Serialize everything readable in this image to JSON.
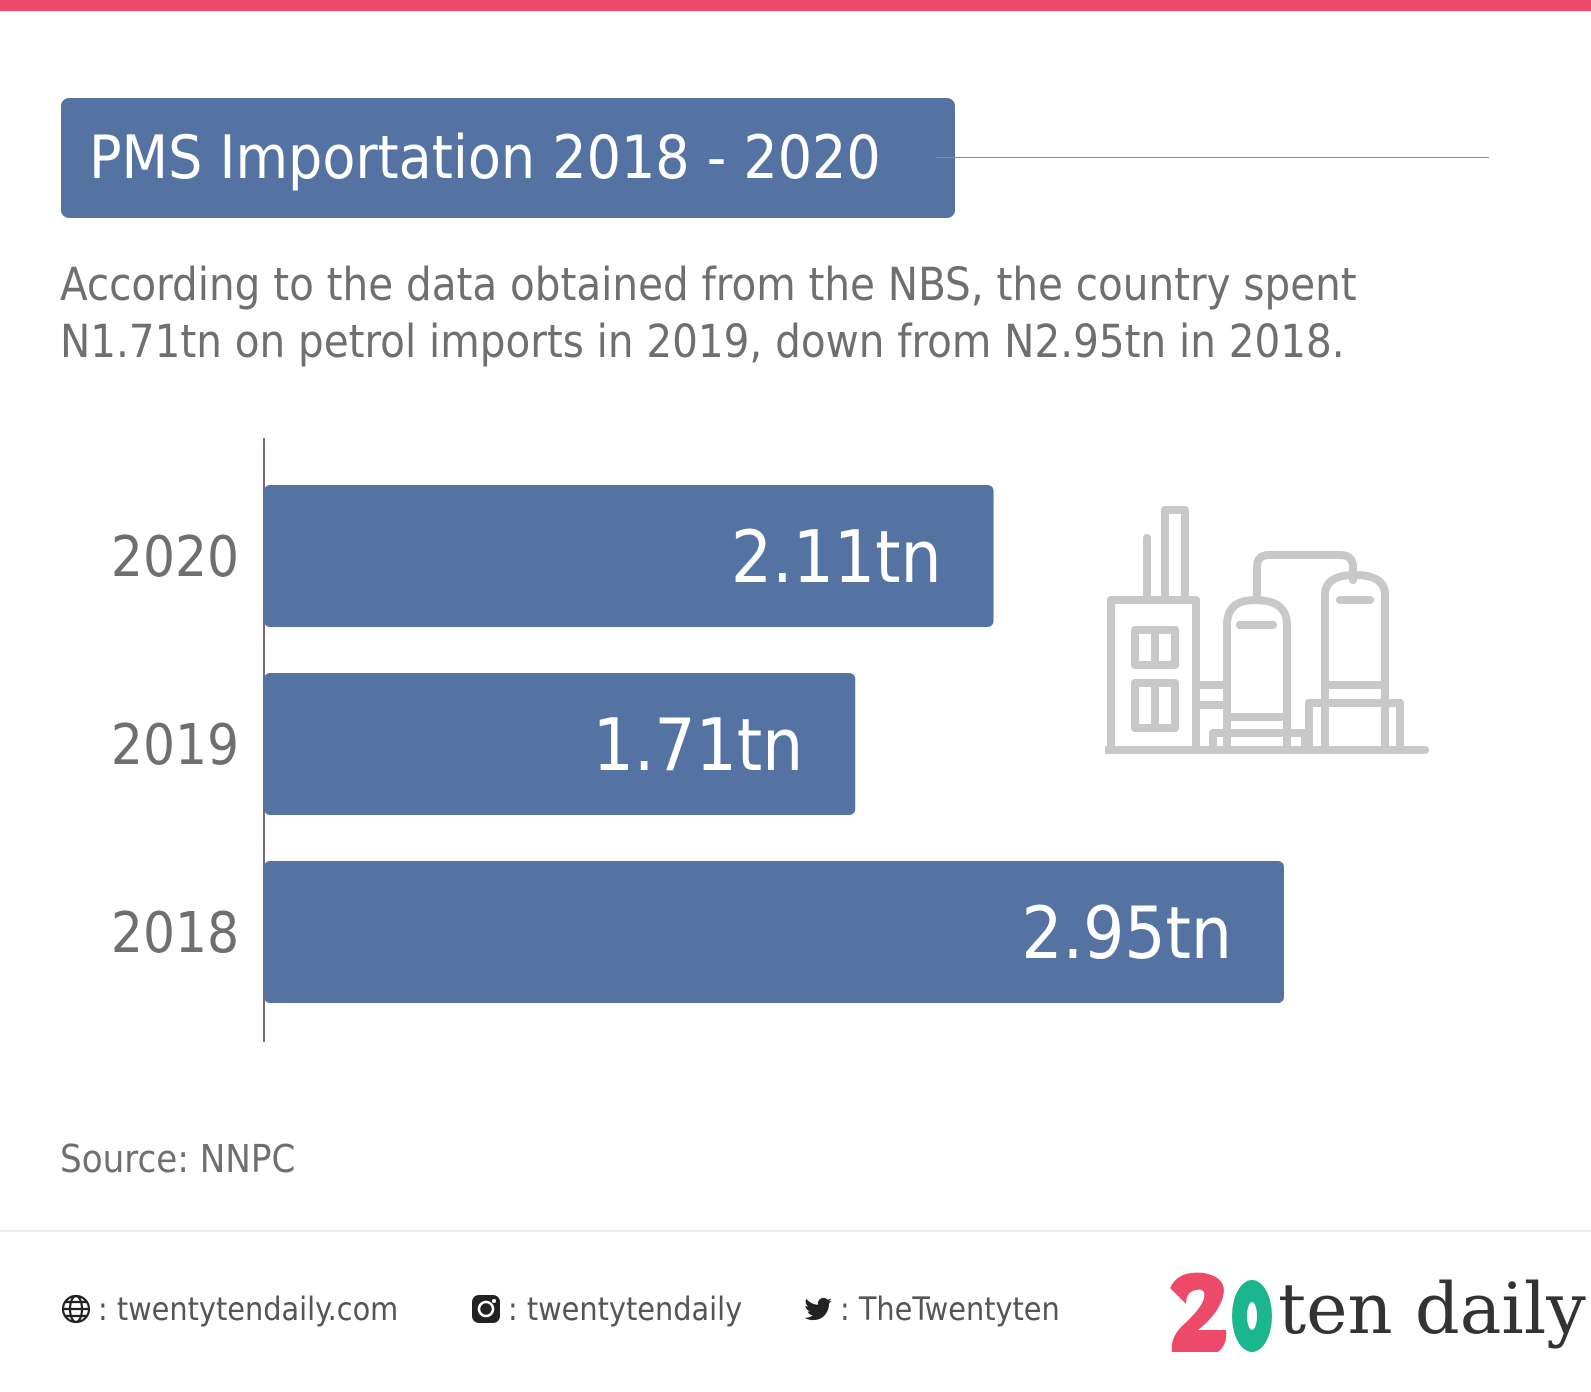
{
  "title": "PMS Importation 2018 - 2020",
  "subtitle_lines": [
    "According to the data obtained from the NBS, the country spent",
    "N1.71tn on petrol imports in 2019, down from N2.95tn in 2018."
  ],
  "source": "Source: NNPC",
  "colors": {
    "bar": "#5573a2",
    "accent": "#ec4a68",
    "logo_green": "#1bb58e",
    "text_gray": "#6f6f6f",
    "icon_gray": "#c8c8c8"
  },
  "chart_data": {
    "type": "bar",
    "orientation": "horizontal",
    "categories": [
      "2020",
      "2019",
      "2018"
    ],
    "values": [
      2.11,
      1.71,
      2.95
    ],
    "value_labels": [
      "2.11tn",
      "1.71tn",
      "2.95tn"
    ],
    "xlim": [
      0,
      2.95
    ],
    "grid": false,
    "legend": "none"
  },
  "footer": {
    "website": ": twentytendaily.com",
    "instagram": ": twentytendaily",
    "twitter": ": TheTwentyten",
    "logo_text": "ten daily",
    "icons": [
      "globe-icon",
      "instagram-icon",
      "twitter-icon"
    ]
  }
}
